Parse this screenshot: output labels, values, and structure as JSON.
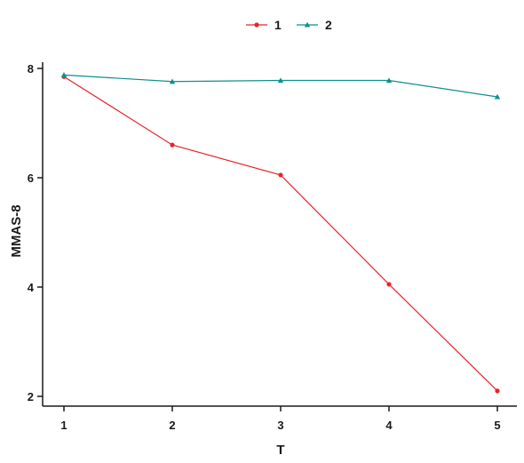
{
  "chart_data": {
    "type": "line",
    "xlabel": "T",
    "ylabel": "MMAS-8",
    "x": [
      1,
      2,
      3,
      4,
      5
    ],
    "xlim": [
      0.8,
      5.2
    ],
    "ylim": [
      1.8,
      8.2
    ],
    "xticks": [
      "1",
      "2",
      "3",
      "4",
      "5"
    ],
    "yticks": [
      "2",
      "4",
      "6",
      "8"
    ],
    "legend_position": "top-center",
    "grid": false,
    "series": [
      {
        "name": "1",
        "values": [
          7.85,
          6.6,
          6.05,
          4.05,
          2.1
        ],
        "color": "#e8242b",
        "marker": "circle"
      },
      {
        "name": "2",
        "values": [
          7.88,
          7.76,
          7.78,
          7.78,
          7.48
        ],
        "color": "#0f8f8f",
        "marker": "triangle"
      }
    ]
  }
}
